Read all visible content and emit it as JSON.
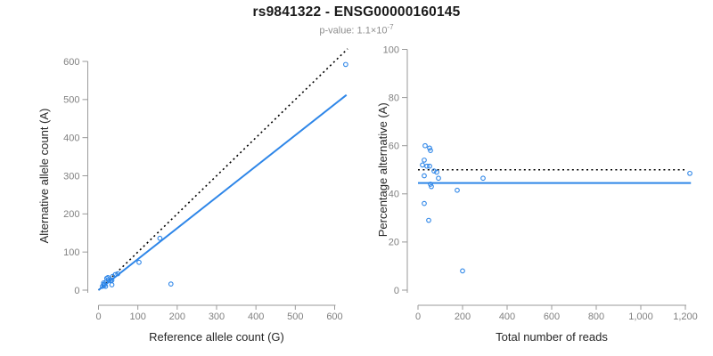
{
  "header": {
    "title": "rs9841322 - ENSG00000160145",
    "subtitle_prefix": "p-value: 1.1×10",
    "subtitle_exponent": "-7"
  },
  "colors": {
    "accent_blue": "#2E86E8",
    "dotted_line": "#000000",
    "tick_text": "#808080",
    "axis_line": "#9a9a9a",
    "axis_title": "#262626",
    "title_text": "#1a1a1a",
    "subtitle_text": "#8f8f8f",
    "background": "#ffffff"
  },
  "chart_data": [
    {
      "id": "allele-count-scatter",
      "type": "scatter",
      "title": "",
      "xlabel": "Reference allele count (G)",
      "ylabel": "Alternative allele count (A)",
      "xlim": [
        0,
        640
      ],
      "ylim": [
        0,
        640
      ],
      "xticks": [
        0,
        100,
        200,
        300,
        400,
        500,
        600
      ],
      "xtick_labels": [
        "0",
        "100",
        "200",
        "300",
        "400",
        "500",
        "600"
      ],
      "yticks": [
        0,
        100,
        200,
        300,
        400,
        500,
        600
      ],
      "ytick_labels": [
        "0",
        "100",
        "200",
        "300",
        "400",
        "500",
        "600"
      ],
      "grid": false,
      "legend": "none",
      "marker": "open-circle",
      "points": [
        [
          13,
          19
        ],
        [
          21,
          31
        ],
        [
          24,
          33
        ],
        [
          13,
          15
        ],
        [
          10,
          10
        ],
        [
          19,
          21
        ],
        [
          25,
          27
        ],
        [
          36,
          36
        ],
        [
          43,
          41
        ],
        [
          15,
          13
        ],
        [
          49,
          43
        ],
        [
          31,
          25
        ],
        [
          34,
          26
        ],
        [
          18,
          10
        ],
        [
          34,
          14
        ],
        [
          103,
          73
        ],
        [
          156,
          136
        ],
        [
          184,
          16
        ],
        [
          628,
          592
        ]
      ],
      "lines": [
        {
          "name": "identity-line",
          "style": "dotted",
          "color": "black",
          "from": [
            0,
            0
          ],
          "to": [
            633,
            633
          ]
        },
        {
          "name": "regression-line",
          "style": "solid",
          "color": "blue",
          "from": [
            0,
            0
          ],
          "to": [
            630,
            512
          ]
        }
      ]
    },
    {
      "id": "percentage-scatter",
      "type": "scatter",
      "title": "",
      "xlabel": "Total number of reads",
      "ylabel": "Percentage alternative (A)",
      "xlim": [
        0,
        1230
      ],
      "ylim": [
        0,
        100
      ],
      "xticks": [
        0,
        200,
        400,
        600,
        800,
        1000,
        1200
      ],
      "xtick_labels": [
        "0",
        "200",
        "400",
        "600",
        "800",
        "1,000",
        "1,200"
      ],
      "yticks": [
        0,
        20,
        40,
        60,
        80,
        100
      ],
      "ytick_labels": [
        "0",
        "20",
        "40",
        "60",
        "80",
        "100"
      ],
      "grid": false,
      "legend": "none",
      "marker": "open-circle",
      "points": [
        [
          32,
          60
        ],
        [
          52,
          59
        ],
        [
          56,
          58
        ],
        [
          28,
          54
        ],
        [
          20,
          52
        ],
        [
          40,
          51.5
        ],
        [
          52,
          51.5
        ],
        [
          72,
          49.5
        ],
        [
          84,
          49
        ],
        [
          28,
          47.5
        ],
        [
          92,
          46.5
        ],
        [
          292,
          46.5
        ],
        [
          56,
          44
        ],
        [
          60,
          43
        ],
        [
          176,
          41.5
        ],
        [
          28,
          36
        ],
        [
          48,
          29
        ],
        [
          200,
          8
        ],
        [
          1220,
          48.5
        ]
      ],
      "lines": [
        {
          "name": "expected-50pct-line",
          "style": "dotted",
          "color": "black",
          "from": [
            0,
            50
          ],
          "to": [
            1200,
            50
          ]
        },
        {
          "name": "mean-ratio-line",
          "style": "solid",
          "color": "blue",
          "from": [
            0,
            44.5
          ],
          "to": [
            1225,
            44.5
          ]
        }
      ]
    }
  ]
}
